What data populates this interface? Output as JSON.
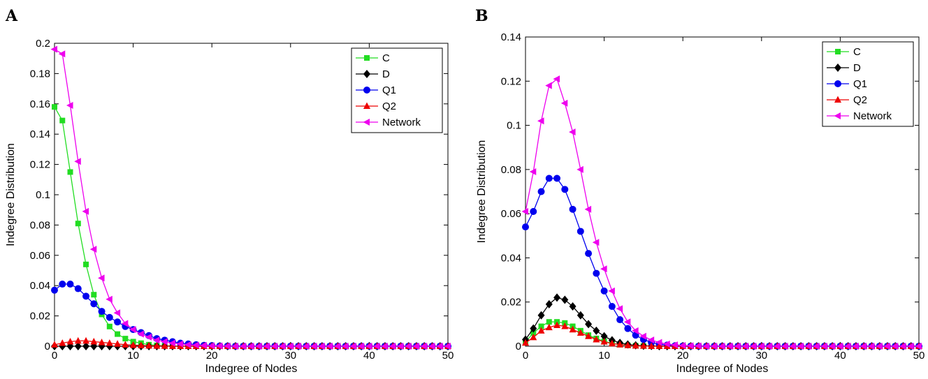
{
  "chart_data": [
    {
      "panel": "A",
      "type": "line",
      "xlabel": "Indegree of Nodes",
      "ylabel": "Indegree Distribution",
      "xlim": [
        0,
        50
      ],
      "ylim": [
        0,
        0.2
      ],
      "xticks": [
        0,
        10,
        20,
        30,
        40,
        50
      ],
      "yticks": [
        0,
        0.02,
        0.04,
        0.06,
        0.08,
        0.1,
        0.12,
        0.14,
        0.16,
        0.18,
        0.2
      ],
      "ytick_labels": [
        "0",
        "0.02",
        "0.04",
        "0.06",
        "0.08",
        "0.1",
        "0.12",
        "0.14",
        "0.16",
        "0.18",
        "0.2"
      ],
      "grid": false,
      "legend_position": "top-right",
      "x": [
        0,
        1,
        2,
        3,
        4,
        5,
        6,
        7,
        8,
        9,
        10,
        11,
        12,
        13,
        14,
        15,
        16,
        17,
        18,
        19,
        20,
        21,
        22,
        23,
        24,
        25,
        26,
        27,
        28,
        29,
        30,
        31,
        32,
        33,
        34,
        35,
        36,
        37,
        38,
        39,
        40,
        41,
        42,
        43,
        44,
        45,
        46,
        47,
        48,
        49,
        50
      ],
      "series": [
        {
          "name": "C",
          "color": "#22dd22",
          "marker": "square",
          "values": [
            0.158,
            0.149,
            0.115,
            0.081,
            0.054,
            0.034,
            0.021,
            0.013,
            0.008,
            0.005,
            0.003,
            0.002,
            0.001,
            0.0005,
            0.0003,
            0.0002,
            0.0001,
            0,
            0,
            0,
            0,
            0,
            0,
            0,
            0,
            0,
            0,
            0,
            0,
            0,
            0,
            0,
            0,
            0,
            0,
            0,
            0,
            0,
            0,
            0,
            0,
            0,
            0,
            0,
            0,
            0,
            0,
            0,
            0,
            0,
            0
          ]
        },
        {
          "name": "D",
          "color": "#000000",
          "marker": "diamond",
          "values": [
            0,
            0,
            0,
            0,
            0,
            0,
            0,
            0,
            0,
            0,
            0,
            0,
            0,
            0,
            0,
            0,
            0,
            0,
            0,
            0,
            0,
            0,
            0,
            0,
            0,
            0,
            0,
            0,
            0,
            0,
            0,
            0,
            0,
            0,
            0,
            0,
            0,
            0,
            0,
            0,
            0,
            0,
            0,
            0,
            0,
            0,
            0,
            0,
            0,
            0,
            0
          ]
        },
        {
          "name": "Q1",
          "color": "#0000ee",
          "marker": "circle",
          "values": [
            0.037,
            0.041,
            0.041,
            0.038,
            0.033,
            0.028,
            0.023,
            0.019,
            0.016,
            0.013,
            0.011,
            0.009,
            0.007,
            0.005,
            0.004,
            0.003,
            0.002,
            0.0015,
            0.001,
            0.0006,
            0.0004,
            0.0002,
            0.0001,
            0,
            0,
            0,
            0,
            0,
            0,
            0,
            0,
            0,
            0,
            0,
            0,
            0,
            0,
            0,
            0,
            0,
            0,
            0,
            0,
            0,
            0,
            0,
            0,
            0,
            0,
            0,
            0
          ]
        },
        {
          "name": "Q2",
          "color": "#ee0000",
          "marker": "triangle-up",
          "values": [
            0.001,
            0.002,
            0.003,
            0.0035,
            0.0035,
            0.003,
            0.0025,
            0.002,
            0.0015,
            0.001,
            0.0007,
            0.0005,
            0.0003,
            0.0002,
            0.0001,
            0,
            0,
            0,
            0,
            0,
            0,
            0,
            0,
            0,
            0,
            0,
            0,
            0,
            0,
            0,
            0,
            0,
            0,
            0,
            0,
            0,
            0,
            0,
            0,
            0,
            0,
            0,
            0,
            0,
            0,
            0,
            0,
            0,
            0,
            0,
            0
          ]
        },
        {
          "name": "Network",
          "color": "#ee00ee",
          "marker": "triangle-left",
          "values": [
            0.196,
            0.193,
            0.159,
            0.122,
            0.089,
            0.064,
            0.045,
            0.031,
            0.022,
            0.015,
            0.011,
            0.008,
            0.006,
            0.004,
            0.003,
            0.002,
            0.0015,
            0.001,
            0.0007,
            0.0005,
            0.0003,
            0.0002,
            0.0001,
            0,
            0,
            0,
            0,
            0,
            0,
            0,
            0,
            0,
            0,
            0,
            0,
            0,
            0,
            0,
            0,
            0,
            0,
            0,
            0,
            0,
            0,
            0,
            0,
            0,
            0,
            0,
            0
          ]
        }
      ]
    },
    {
      "panel": "B",
      "type": "line",
      "xlabel": "Indegree of Nodes",
      "ylabel": "Indegree Distribution",
      "xlim": [
        0,
        50
      ],
      "ylim": [
        0,
        0.14
      ],
      "xticks": [
        0,
        10,
        20,
        30,
        40,
        50
      ],
      "yticks": [
        0,
        0.02,
        0.04,
        0.06,
        0.08,
        0.1,
        0.12,
        0.14
      ],
      "ytick_labels": [
        "0",
        "0.02",
        "0.04",
        "0.06",
        "0.08",
        "0.1",
        "0.12",
        "0.14"
      ],
      "grid": false,
      "legend_position": "top-right",
      "x": [
        0,
        1,
        2,
        3,
        4,
        5,
        6,
        7,
        8,
        9,
        10,
        11,
        12,
        13,
        14,
        15,
        16,
        17,
        18,
        19,
        20,
        21,
        22,
        23,
        24,
        25,
        26,
        27,
        28,
        29,
        30,
        31,
        32,
        33,
        34,
        35,
        36,
        37,
        38,
        39,
        40,
        41,
        42,
        43,
        44,
        45,
        46,
        47,
        48,
        49,
        50
      ],
      "series": [
        {
          "name": "C",
          "color": "#22dd22",
          "marker": "square",
          "values": [
            0.002,
            0.006,
            0.009,
            0.011,
            0.011,
            0.0105,
            0.009,
            0.007,
            0.005,
            0.0035,
            0.0022,
            0.0013,
            0.0007,
            0.0004,
            0.0002,
            0.0001,
            0,
            0,
            0,
            0,
            0,
            0,
            0,
            0,
            0,
            0,
            0,
            0,
            0,
            0,
            0,
            0,
            0,
            0,
            0,
            0,
            0,
            0,
            0,
            0,
            0,
            0,
            0,
            0,
            0,
            0,
            0,
            0,
            0,
            0,
            0
          ]
        },
        {
          "name": "D",
          "color": "#000000",
          "marker": "diamond",
          "values": [
            0.003,
            0.008,
            0.014,
            0.019,
            0.022,
            0.021,
            0.018,
            0.014,
            0.01,
            0.007,
            0.0045,
            0.0027,
            0.0015,
            0.0008,
            0.0004,
            0.0002,
            0.0001,
            0,
            0,
            0,
            0,
            0,
            0,
            0,
            0,
            0,
            0,
            0,
            0,
            0,
            0,
            0,
            0,
            0,
            0,
            0,
            0,
            0,
            0,
            0,
            0,
            0,
            0,
            0,
            0,
            0,
            0,
            0,
            0,
            0,
            0
          ]
        },
        {
          "name": "Q1",
          "color": "#0000ee",
          "marker": "circle",
          "values": [
            0.054,
            0.061,
            0.07,
            0.076,
            0.076,
            0.071,
            0.062,
            0.052,
            0.042,
            0.033,
            0.025,
            0.018,
            0.012,
            0.008,
            0.005,
            0.003,
            0.0017,
            0.0009,
            0.0005,
            0.0002,
            0.0001,
            0,
            0,
            0,
            0,
            0,
            0,
            0,
            0,
            0,
            0,
            0,
            0,
            0,
            0,
            0,
            0,
            0,
            0,
            0,
            0,
            0,
            0,
            0,
            0,
            0,
            0,
            0,
            0,
            0,
            0
          ]
        },
        {
          "name": "Q2",
          "color": "#ee0000",
          "marker": "triangle-up",
          "values": [
            0.0015,
            0.004,
            0.007,
            0.0085,
            0.0095,
            0.009,
            0.0075,
            0.006,
            0.0045,
            0.003,
            0.002,
            0.0012,
            0.0007,
            0.0004,
            0.0002,
            0.0001,
            0,
            0,
            0,
            0,
            0,
            0,
            0,
            0,
            0,
            0,
            0,
            0,
            0,
            0,
            0,
            0,
            0,
            0,
            0,
            0,
            0,
            0,
            0,
            0,
            0,
            0,
            0,
            0,
            0,
            0,
            0,
            0,
            0,
            0,
            0
          ]
        },
        {
          "name": "Network",
          "color": "#ee00ee",
          "marker": "triangle-left",
          "values": [
            0.061,
            0.079,
            0.102,
            0.118,
            0.121,
            0.11,
            0.097,
            0.08,
            0.062,
            0.047,
            0.035,
            0.025,
            0.017,
            0.011,
            0.007,
            0.0045,
            0.0028,
            0.0017,
            0.001,
            0.0006,
            0.0003,
            0.0002,
            0.0001,
            0,
            0,
            0,
            0,
            0,
            0,
            0,
            0,
            0,
            0,
            0,
            0,
            0,
            0,
            0,
            0,
            0,
            0,
            0,
            0,
            0,
            0,
            0,
            0,
            0,
            0,
            0,
            0
          ]
        }
      ]
    }
  ]
}
